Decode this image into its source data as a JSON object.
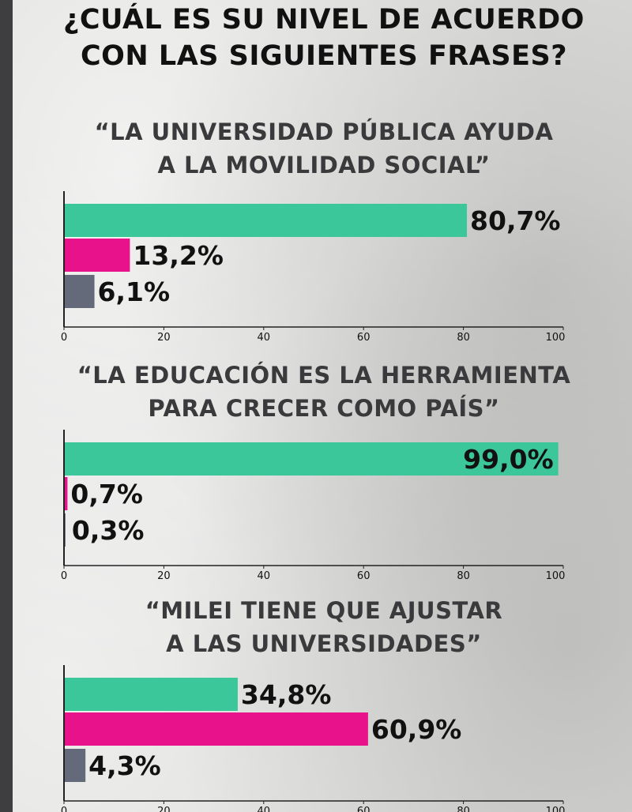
{
  "title": {
    "line1": "¿CUÁL ES SU NIVEL DE ACUERDO",
    "line2": "CON LAS SIGUIENTES FRASES?"
  },
  "colors": {
    "agree": "#3cc79a",
    "disagree": "#e8138a",
    "neutral": "#656a7a",
    "axis": "#222222",
    "strip": "#3e3e40"
  },
  "chart_data": [
    {
      "type": "bar",
      "orientation": "horizontal",
      "title_line1": "“LA UNIVERSIDAD PÚBLICA AYUDA",
      "title_line2": "A LA MOVILIDAD SOCIAL”",
      "values": [
        80.7,
        13.2,
        6.1
      ],
      "labels": [
        "80,7%",
        "13,2%",
        "6,1%"
      ],
      "xlim": [
        0,
        100
      ],
      "ticks": [
        "0",
        "20",
        "40",
        "60",
        "80",
        "100"
      ]
    },
    {
      "type": "bar",
      "orientation": "horizontal",
      "title_line1": "“LA EDUCACIÓN ES LA HERRAMIENTA",
      "title_line2": "PARA CRECER COMO PAÍS”",
      "values": [
        99.0,
        0.7,
        0.3
      ],
      "labels": [
        "99,0%",
        "0,7%",
        "0,3%"
      ],
      "xlim": [
        0,
        100
      ],
      "ticks": [
        "0",
        "20",
        "40",
        "60",
        "80",
        "100"
      ]
    },
    {
      "type": "bar",
      "orientation": "horizontal",
      "title_line1": "“MILEI TIENE QUE AJUSTAR",
      "title_line2": "A LAS UNIVERSIDADES”",
      "values": [
        34.8,
        60.9,
        4.3
      ],
      "labels": [
        "34,8%",
        "60,9%",
        "4,3%"
      ],
      "xlim": [
        0,
        100
      ],
      "ticks": [
        "0",
        "20",
        "40",
        "60",
        "80",
        "100"
      ]
    }
  ]
}
